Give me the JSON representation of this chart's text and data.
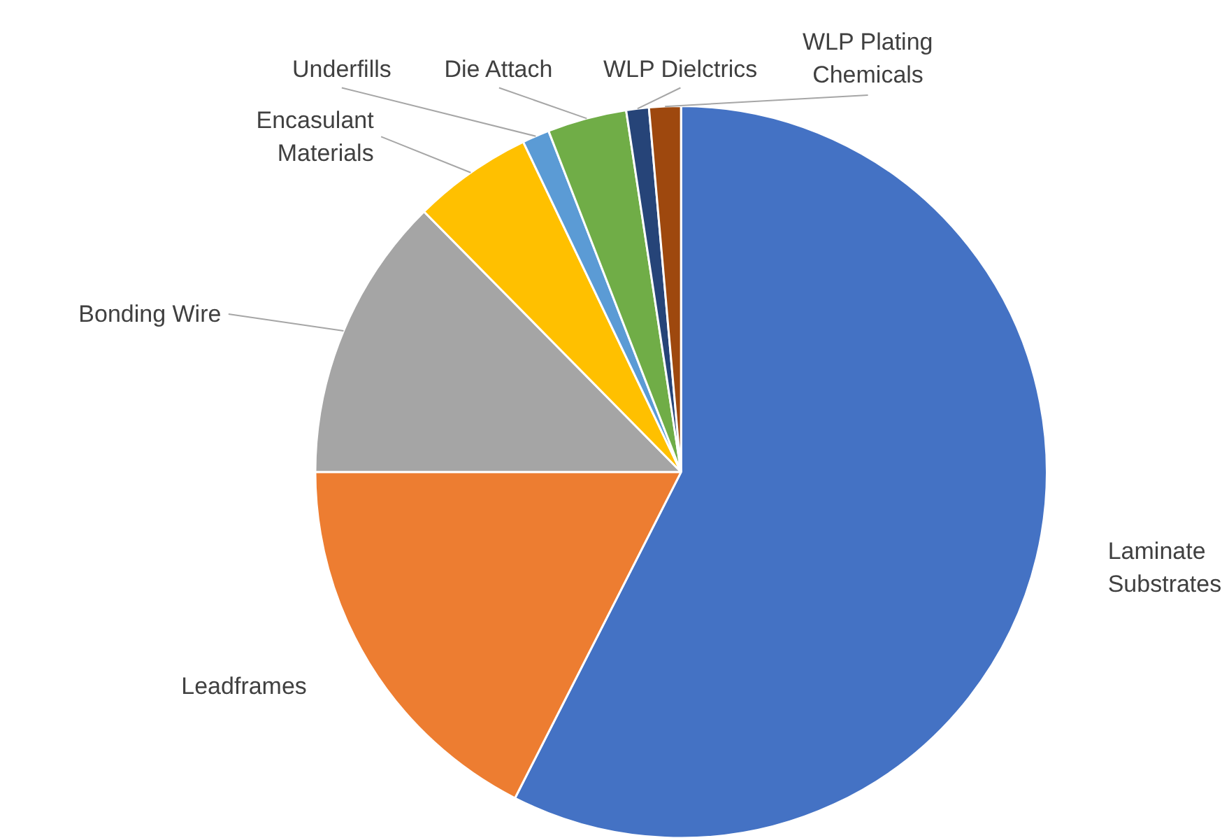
{
  "chart_data": {
    "type": "pie",
    "categories": [
      "Laminate Substrates",
      "Leadframes",
      "Bonding Wire",
      "Encasulant Materials",
      "Underfills",
      "Die Attach",
      "WLP Dielctrics",
      "WLP Plating Chemicals"
    ],
    "values": [
      57.5,
      17.5,
      12.6,
      5.3,
      1.2,
      3.5,
      1.0,
      1.4
    ],
    "colors": [
      "#4472c4",
      "#ed7d31",
      "#a5a5a5",
      "#ffc000",
      "#5b9bd5",
      "#70ad47",
      "#264478",
      "#9e480e"
    ]
  }
}
